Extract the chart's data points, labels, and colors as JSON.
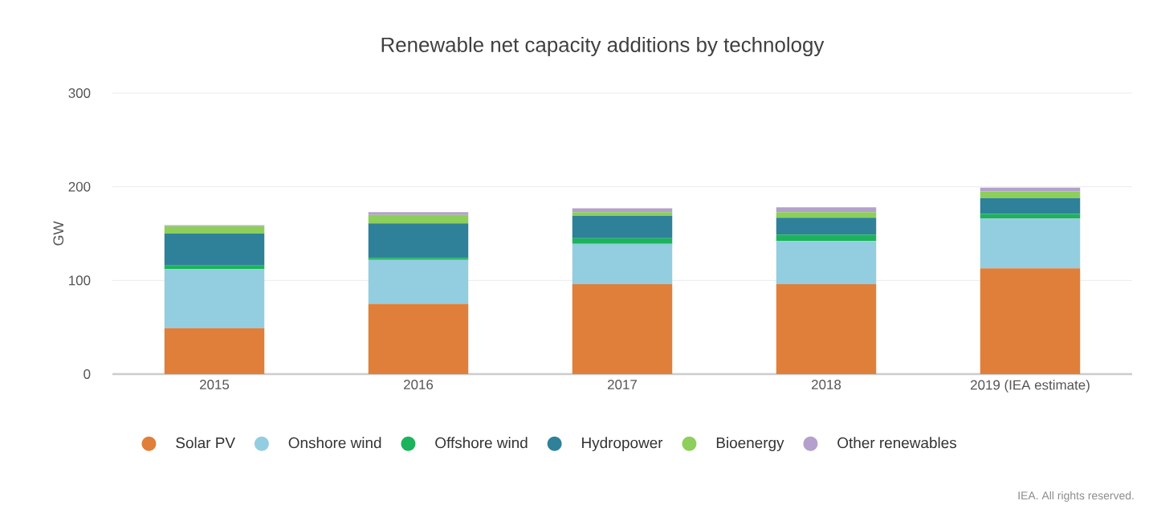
{
  "chart_data": {
    "type": "bar",
    "title": "Renewable net capacity additions by technology",
    "ylabel": "GW",
    "categories": [
      "2015",
      "2016",
      "2017",
      "2018",
      "2019 (IEA estimate)"
    ],
    "stacked": true,
    "ylim": [
      0,
      300
    ],
    "yticks": [
      0,
      100,
      200,
      300
    ],
    "grid": "y",
    "legend": "bottom",
    "series": [
      {
        "name": "Solar PV",
        "color": "#e07f39",
        "values": [
          49,
          75,
          96,
          96,
          113
        ]
      },
      {
        "name": "Onshore wind",
        "color": "#93cde0",
        "values": [
          63,
          47,
          43,
          46,
          53
        ]
      },
      {
        "name": "Offshore wind",
        "color": "#1cb35c",
        "values": [
          4,
          2,
          6,
          7,
          5
        ]
      },
      {
        "name": "Hydropower",
        "color": "#2e8199",
        "values": [
          34,
          37,
          24,
          18,
          17
        ]
      },
      {
        "name": "Bioenergy",
        "color": "#8dcf5a",
        "values": [
          8,
          9,
          4,
          6,
          7
        ]
      },
      {
        "name": "Other renewables",
        "color": "#b3a0cc",
        "values": [
          1,
          3,
          4,
          5,
          4
        ]
      }
    ],
    "annotations": [
      "IEA. All rights reserved."
    ]
  }
}
